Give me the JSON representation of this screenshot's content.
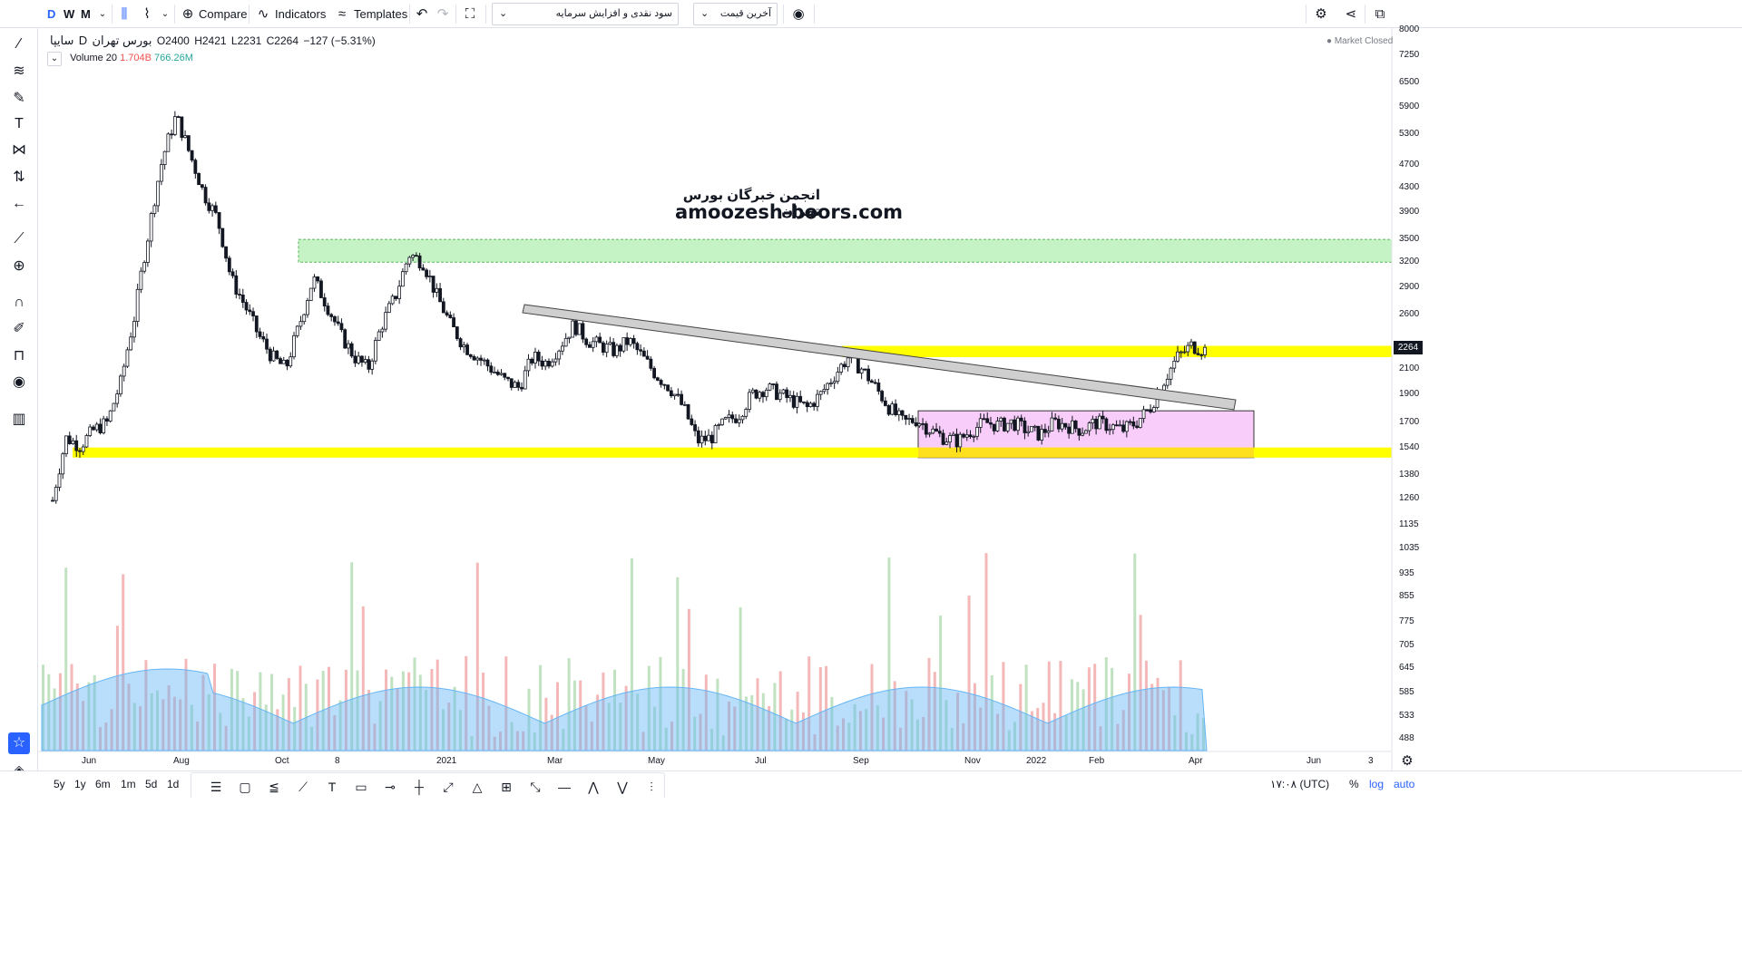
{
  "toolbar": {
    "intervals": [
      "D",
      "W",
      "M"
    ],
    "compare_label": "Compare",
    "indicators_label": "Indicators",
    "templates_label": "Templates",
    "dropdown_1": "سود نقدی و افزایش سرمایه",
    "dropdown_2": "آخرین قیمت"
  },
  "legend": {
    "symbol": "سایپا",
    "interval": "D",
    "exchange": "بورس تهران",
    "open": "O2400",
    "high": "H2421",
    "low": "L2231",
    "close": "C2264",
    "change": "−127 (−5.31%)",
    "market_status": "Market Closed"
  },
  "volume_legend": {
    "label": "Volume 20",
    "value1": "1.704B",
    "value2": "766.26M"
  },
  "watermark": {
    "line1": "انجمن خبرگان بورس تهران",
    "line2": "amoozesh-boors.com"
  },
  "price_axis": [
    "8000",
    "7250",
    "6500",
    "5900",
    "5300",
    "4700",
    "4300",
    "3900",
    "3500",
    "3200",
    "2900",
    "2600",
    "2100",
    "1900",
    "1700",
    "1540",
    "1380",
    "1260",
    "1135",
    "1035",
    "935",
    "855",
    "775",
    "705",
    "645",
    "585",
    "533",
    "488"
  ],
  "current_price": "2264",
  "time_axis": [
    "Jun",
    "Aug",
    "Oct",
    "8",
    "2021",
    "Mar",
    "May",
    "Jul",
    "Sep",
    "Nov",
    "2022",
    "Feb",
    "Apr",
    "Jun",
    "3"
  ],
  "bottombar": {
    "ranges": [
      "5y",
      "1y",
      "6m",
      "1m",
      "5d",
      "1d"
    ],
    "time": "۱۷:۰۸ (UTC)",
    "percent": "%",
    "log": "log",
    "auto": "auto"
  },
  "colors": {
    "up": "#26a69a",
    "down": "#ef5350",
    "yellow_zone": "#ffff00",
    "green_zone": "#b7f0b7",
    "pink_zone": "#f8c8f8",
    "volume_ma": "#64b5f6",
    "accent": "#2962ff"
  },
  "chart_data": {
    "type": "candlestick",
    "title": "",
    "y_scale": "log",
    "ylim": [
      450,
      8000
    ],
    "x_range": [
      "2020-05",
      "2022-06"
    ],
    "close_path": [
      [
        1250,
        0
      ],
      [
        1600,
        1
      ],
      [
        1550,
        2
      ],
      [
        1650,
        3
      ],
      [
        1700,
        4
      ],
      [
        2000,
        5
      ],
      [
        2600,
        6
      ],
      [
        3600,
        7
      ],
      [
        4800,
        8
      ],
      [
        5700,
        9
      ],
      [
        4900,
        10
      ],
      [
        4200,
        11
      ],
      [
        3800,
        12
      ],
      [
        3000,
        13
      ],
      [
        2700,
        14
      ],
      [
        2400,
        15
      ],
      [
        2200,
        16
      ],
      [
        2100,
        17
      ],
      [
        2500,
        18
      ],
      [
        3000,
        19
      ],
      [
        2700,
        20
      ],
      [
        2400,
        21
      ],
      [
        2200,
        22
      ],
      [
        2100,
        23
      ],
      [
        2500,
        24
      ],
      [
        2800,
        25
      ],
      [
        3300,
        26
      ],
      [
        3200,
        27
      ],
      [
        2800,
        28
      ],
      [
        2500,
        29
      ],
      [
        2300,
        30
      ],
      [
        2200,
        31
      ],
      [
        2100,
        32
      ],
      [
        2000,
        33
      ],
      [
        1950,
        34
      ],
      [
        2200,
        35
      ],
      [
        2150,
        36
      ],
      [
        2300,
        37
      ],
      [
        2500,
        38
      ],
      [
        2350,
        39
      ],
      [
        2300,
        40
      ],
      [
        2250,
        41
      ],
      [
        2350,
        42
      ],
      [
        2200,
        43
      ],
      [
        2050,
        44
      ],
      [
        1950,
        45
      ],
      [
        1800,
        46
      ],
      [
        1580,
        47
      ],
      [
        1600,
        48
      ],
      [
        1700,
        49
      ],
      [
        1750,
        50
      ],
      [
        1900,
        51
      ],
      [
        1950,
        52
      ],
      [
        1900,
        53
      ],
      [
        1850,
        54
      ],
      [
        1800,
        55
      ],
      [
        1900,
        56
      ],
      [
        2050,
        57
      ],
      [
        2200,
        58
      ],
      [
        2100,
        59
      ],
      [
        1950,
        60
      ],
      [
        1800,
        61
      ],
      [
        1700,
        62
      ],
      [
        1720,
        63
      ],
      [
        1650,
        64
      ],
      [
        1600,
        65
      ],
      [
        1580,
        66
      ],
      [
        1650,
        67
      ],
      [
        1700,
        68
      ],
      [
        1680,
        69
      ],
      [
        1700,
        70
      ],
      [
        1650,
        71
      ],
      [
        1620,
        72
      ],
      [
        1700,
        73
      ],
      [
        1680,
        74
      ],
      [
        1650,
        75
      ],
      [
        1700,
        76
      ],
      [
        1680,
        77
      ],
      [
        1650,
        78
      ],
      [
        1700,
        79
      ],
      [
        1800,
        80
      ],
      [
        2000,
        81
      ],
      [
        2200,
        82
      ],
      [
        2300,
        83
      ],
      [
        2264,
        84
      ]
    ],
    "levels": {
      "yellow_zone_1": [
        2200,
        2300
      ],
      "yellow_zone_2": [
        1480,
        1540
      ],
      "green_zone": [
        3200,
        3500
      ],
      "pink_box": [
        1480,
        1780
      ],
      "trendline": [
        [
          2750,
          "2021-02"
        ],
        [
          1800,
          "2022-04"
        ]
      ]
    }
  }
}
